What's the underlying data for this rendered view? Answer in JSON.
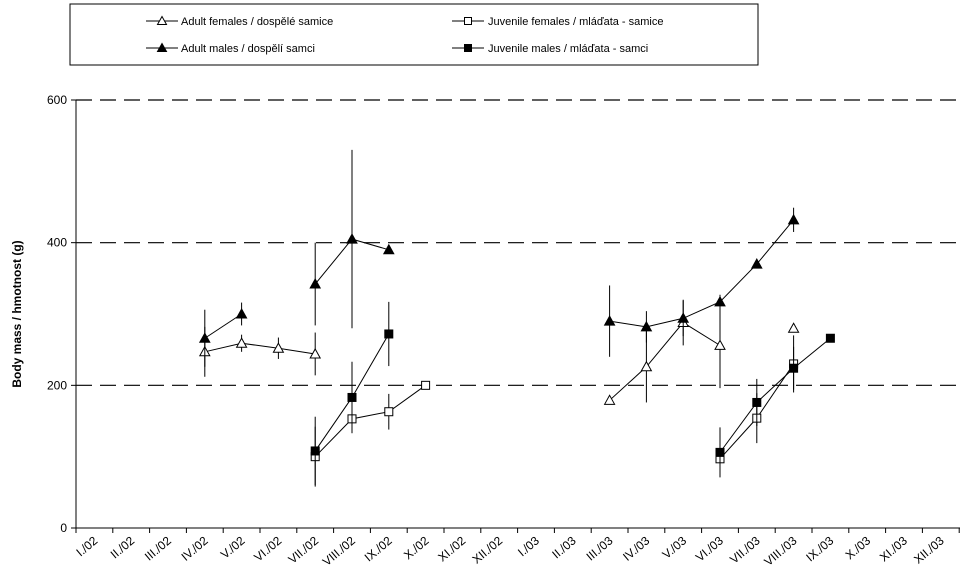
{
  "chart_data": {
    "type": "line",
    "title": "",
    "xlabel": "",
    "ylabel": "Body mass / hmotnost (g)",
    "ylim": [
      0,
      600
    ],
    "yticks": [
      0,
      200,
      400,
      600
    ],
    "grid": "horizontal dashed at 200, 400, 600",
    "legend_position": "top",
    "categories": [
      "I./02",
      "II./02",
      "III./02",
      "IV./02",
      "V./02",
      "VI./02",
      "VII./02",
      "VIII./02",
      "IX./02",
      "X./02",
      "XI./02",
      "XII./02",
      "I./03",
      "II./03",
      "III./03",
      "IV./03",
      "V./03",
      "VI./03",
      "VII./03",
      "VIII./03",
      "IX./03",
      "X./03",
      "XI./03",
      "XII./03"
    ],
    "series": [
      {
        "name": "Adult females / dospělé samice",
        "marker": "triangle-open",
        "segments": [
          [
            {
              "x": 3.5,
              "y": 247,
              "err": 35
            },
            {
              "x": 4.5,
              "y": 259,
              "err": 12
            },
            {
              "x": 5.5,
              "y": 252,
              "err": 15
            },
            {
              "x": 6.5,
              "y": 244,
              "err": 30
            }
          ],
          [
            {
              "x": 14.5,
              "y": 179,
              "err": 0
            },
            {
              "x": 15.5,
              "y": 226,
              "err": 50
            },
            {
              "x": 16.5,
              "y": 288,
              "err": 32
            },
            {
              "x": 17.5,
              "y": 256,
              "err": 60
            }
          ],
          [
            {
              "x": 19.5,
              "y": 280,
              "err": 0
            }
          ]
        ]
      },
      {
        "name": "Adult males / dospělí samci",
        "marker": "triangle-filled",
        "segments": [
          [
            {
              "x": 3.5,
              "y": 266,
              "err": 40
            },
            {
              "x": 4.5,
              "y": 300,
              "err": 16
            }
          ],
          [
            {
              "x": 6.5,
              "y": 342,
              "err": 58
            },
            {
              "x": 7.5,
              "y": 405,
              "err": 125
            },
            {
              "x": 8.5,
              "y": 390,
              "err": 0
            }
          ],
          [
            {
              "x": 14.5,
              "y": 290,
              "err": 50
            },
            {
              "x": 15.5,
              "y": 282,
              "err": 22
            },
            {
              "x": 16.5,
              "y": 294,
              "err": 25
            },
            {
              "x": 17.5,
              "y": 317,
              "err": 10
            },
            {
              "x": 18.5,
              "y": 370,
              "err": 0
            },
            {
              "x": 19.5,
              "y": 432,
              "err": 17
            }
          ]
        ]
      },
      {
        "name": "Juvenile females / mláďata - samice",
        "marker": "square-open",
        "segments": [
          [
            {
              "x": 6.5,
              "y": 100,
              "err": 42
            },
            {
              "x": 7.5,
              "y": 153,
              "err": 20
            },
            {
              "x": 8.5,
              "y": 163,
              "err": 25
            },
            {
              "x": 9.5,
              "y": 200,
              "err": 0
            }
          ],
          [
            {
              "x": 17.5,
              "y": 97,
              "err": 25
            },
            {
              "x": 18.5,
              "y": 154,
              "err": 35
            },
            {
              "x": 19.5,
              "y": 230,
              "err": 40
            }
          ]
        ]
      },
      {
        "name": "Juvenile males / mláďata - samci",
        "marker": "square-filled",
        "segments": [
          [
            {
              "x": 6.5,
              "y": 108,
              "err": 48
            },
            {
              "x": 7.5,
              "y": 183,
              "err": 50
            },
            {
              "x": 8.5,
              "y": 272,
              "err": 45
            }
          ],
          [
            {
              "x": 17.5,
              "y": 106,
              "err": 35
            },
            {
              "x": 18.5,
              "y": 176,
              "err": 33
            },
            {
              "x": 19.5,
              "y": 224,
              "err": 30
            },
            {
              "x": 20.5,
              "y": 266,
              "err": 0
            }
          ]
        ]
      }
    ]
  }
}
